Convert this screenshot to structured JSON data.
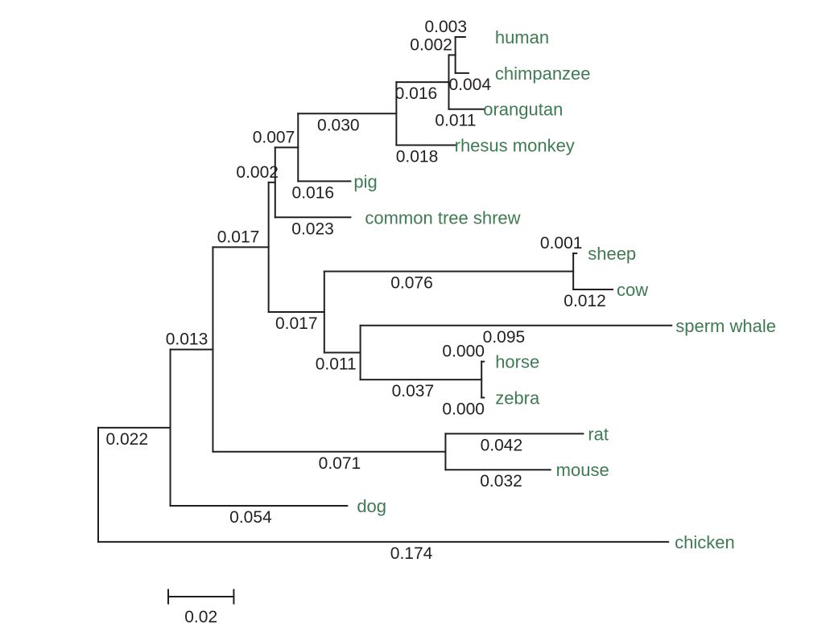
{
  "figure": {
    "type": "phylogenetic_tree"
  },
  "colors": {
    "background": "#FFFFFF",
    "branch_line": "#231F20",
    "branch_label": "#231F20",
    "species_label": "#3E7B52"
  },
  "chart_data": {
    "type": "phylogram",
    "orientation": "left-to-right",
    "scale_bar": {
      "label": "0.02",
      "value": 0.02
    },
    "species": [
      "human",
      "chimpanzee",
      "orangutan",
      "rhesus monkey",
      "pig",
      "common tree shrew",
      "sheep",
      "cow",
      "sperm whale",
      "horse",
      "zebra",
      "rat",
      "mouse",
      "dog",
      "chicken"
    ],
    "tree": {
      "children": [
        {
          "label": "0.022",
          "branch_length": 0.022,
          "label_pos": "below",
          "label_dx": -9,
          "children": [
            {
              "label": "0.013",
              "branch_length": 0.013,
              "label_pos": "above",
              "label_dx": -6,
              "children": [
                {
                  "label": "0.017",
                  "branch_length": 0.017,
                  "label_pos": "above",
                  "label_dx": -3,
                  "children": [
                    {
                      "label": "0.002",
                      "branch_length": 0.002,
                      "label_pos": "above",
                      "label_dx": -18,
                      "children": [
                        {
                          "label": "0.007",
                          "branch_length": 0.007,
                          "label_pos": "above",
                          "label_dx": -16,
                          "children": [
                            {
                              "label": "0.030",
                              "branch_length": 0.03,
                              "label_pos": "below",
                              "label_dx": -11,
                              "children": [
                                {
                                  "label": "0.016",
                                  "branch_length": 0.016,
                                  "label_pos": "below",
                                  "label_dx": -8,
                                  "children": [
                                    {
                                      "label": "0.002",
                                      "branch_length": 0.002,
                                      "label_pos": "above",
                                      "label_dx": -26,
                                      "children": [
                                        {
                                          "name": "human",
                                          "label": "0.003",
                                          "branch_length": 0.003,
                                          "label_pos": "above",
                                          "label_dx": -18,
                                          "name_dx": 29
                                        },
                                        {
                                          "name": "chimpanzee",
                                          "label": "0.004",
                                          "branch_length": 0.004,
                                          "label_pos": "below",
                                          "label_dx": 10,
                                          "name_dx": 25
                                        }
                                      ]
                                    },
                                    {
                                      "name": "orangutan",
                                      "label": "0.011",
                                      "branch_length": 0.011,
                                      "label_pos": "below",
                                      "label_dx": -14,
                                      "name_dx": -10
                                    }
                                  ]
                                },
                                {
                                  "name": "rhesus monkey",
                                  "label": "0.018",
                                  "branch_length": 0.018,
                                  "label_pos": "below",
                                  "label_dx": -11,
                                  "name_dx": -9
                                }
                              ]
                            },
                            {
                              "name": "pig",
                              "label": "0.016",
                              "branch_length": 0.016,
                              "label_pos": "below",
                              "label_dx": -14,
                              "name_dx": -4
                            }
                          ]
                        },
                        {
                          "name": "common tree shrew",
                          "label": "0.023",
                          "branch_length": 0.023,
                          "label_pos": "below",
                          "label_dx": 0,
                          "name_dx": 10
                        }
                      ]
                    },
                    {
                      "label": "0.017",
                      "branch_length": 0.017,
                      "label_pos": "below",
                      "label_dx": 0,
                      "children": [
                        {
                          "label": "0.076",
                          "branch_length": 0.076,
                          "label_pos": "below",
                          "label_dx": -46,
                          "children": [
                            {
                              "name": "sheep",
                              "label": "0.001",
                              "branch_length": 0.001,
                              "label_pos": "above",
                              "label_dx": -17,
                              "name_dx": 6
                            },
                            {
                              "name": "cow",
                              "label": "0.012",
                              "branch_length": 0.012,
                              "label_pos": "below",
                              "label_dx": -10,
                              "name_dx": -3
                            }
                          ]
                        },
                        {
                          "label": "0.011",
                          "branch_length": 0.011,
                          "label_pos": "below",
                          "label_dx": -8,
                          "children": [
                            {
                              "name": "sperm whale",
                              "label": "0.095",
                              "branch_length": 0.095,
                              "label_pos": "below",
                              "label_dx": -15,
                              "name_dx": -3
                            },
                            {
                              "label": "0.037",
                              "branch_length": 0.037,
                              "label_pos": "below",
                              "label_dx": -10,
                              "children": [
                                {
                                  "name": "horse",
                                  "label": "0.000",
                                  "branch_length": 0.0,
                                  "label_pos": "above",
                                  "label_dx": -24,
                                  "name_dx": 6
                                },
                                {
                                  "name": "zebra",
                                  "label": "0.000",
                                  "branch_length": 0.0,
                                  "label_pos": "below",
                                  "label_dx": -24,
                                  "name_dx": 6
                                }
                              ]
                            }
                          ]
                        }
                      ]
                    }
                  ]
                },
                {
                  "label": "0.071",
                  "branch_length": 0.071,
                  "label_pos": "below",
                  "label_dx": 13,
                  "children": [
                    {
                      "name": "rat",
                      "label": "0.042",
                      "branch_length": 0.042,
                      "label_pos": "below",
                      "label_dx": -16,
                      "name_dx": -2
                    },
                    {
                      "name": "mouse",
                      "label": "0.032",
                      "branch_length": 0.032,
                      "label_pos": "below",
                      "label_dx": 4,
                      "name_dx": -1
                    }
                  ]
                }
              ]
            },
            {
              "name": "dog",
              "label": "0.054",
              "branch_length": 0.054,
              "label_pos": "below",
              "label_dx": -10,
              "name_dx": 4
            }
          ]
        },
        {
          "name": "chicken",
          "label": "0.174",
          "branch_length": 0.174,
          "label_pos": "below",
          "label_dx": 35,
          "name_dx": 0
        }
      ]
    }
  }
}
